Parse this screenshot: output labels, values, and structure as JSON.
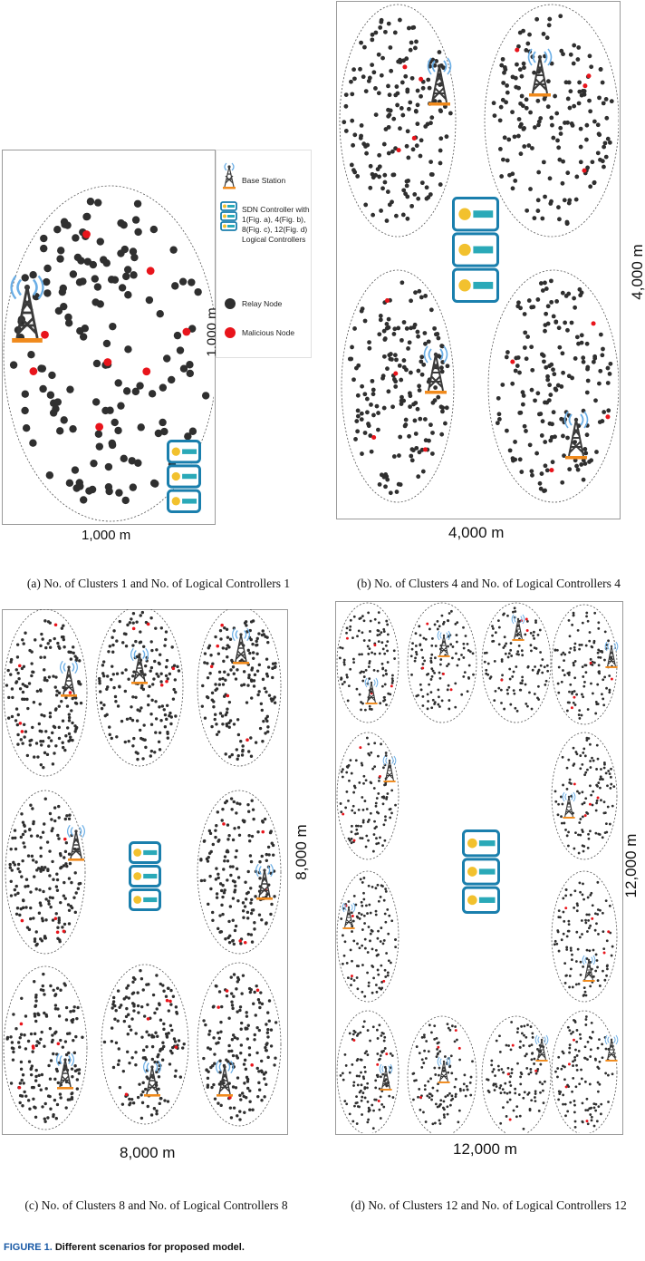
{
  "legend": {
    "items": [
      {
        "icon": "base-station-icon",
        "label": "Base Station"
      },
      {
        "icon": "sdn-controller-icon",
        "label": "SDN Controller with 1(Fig. a), 4(Fig. b), 8(Fig. c), 12(Fig. d) Logical Controllers"
      },
      {
        "icon": "relay-node-icon",
        "label": "Relay Node"
      },
      {
        "icon": "malicious-node-icon",
        "label": "Malicious Node"
      }
    ]
  },
  "colors": {
    "relay": "#2f2f2f",
    "malicious": "#e8141b",
    "controller": "#1a7fad",
    "controller_bar": "#2aa9b8",
    "controller_dot": "#f2c12e",
    "tower": "#3a3a3a",
    "tower_base": "#f08a1c",
    "signal": "#6aaee6"
  },
  "panels": [
    {
      "id": "a",
      "width_label": "1,000 m",
      "height_label": "1,000 m",
      "caption": "(a) No. of Clusters 1 and No. of Logical Controllers 1",
      "clusters": 1,
      "controllers": 1
    },
    {
      "id": "b",
      "width_label": "4,000 m",
      "height_label": "4,000 m",
      "caption": "(b) No. of Clusters 4 and No. of Logical Controllers 4",
      "clusters": 4,
      "controllers": 4
    },
    {
      "id": "c",
      "width_label": "8,000 m",
      "height_label": "8,000 m",
      "caption": "(c) No. of Clusters 8 and No. of Logical Controllers 8",
      "clusters": 8,
      "controllers": 8
    },
    {
      "id": "d",
      "width_label": "12,000 m",
      "height_label": "12,000 m",
      "caption": "(d) No. of Clusters 12 and No. of Logical Controllers 12",
      "clusters": 12,
      "controllers": 12
    }
  ],
  "figure": {
    "number": "FIGURE 1.",
    "title": "Different scenarios for proposed model."
  }
}
